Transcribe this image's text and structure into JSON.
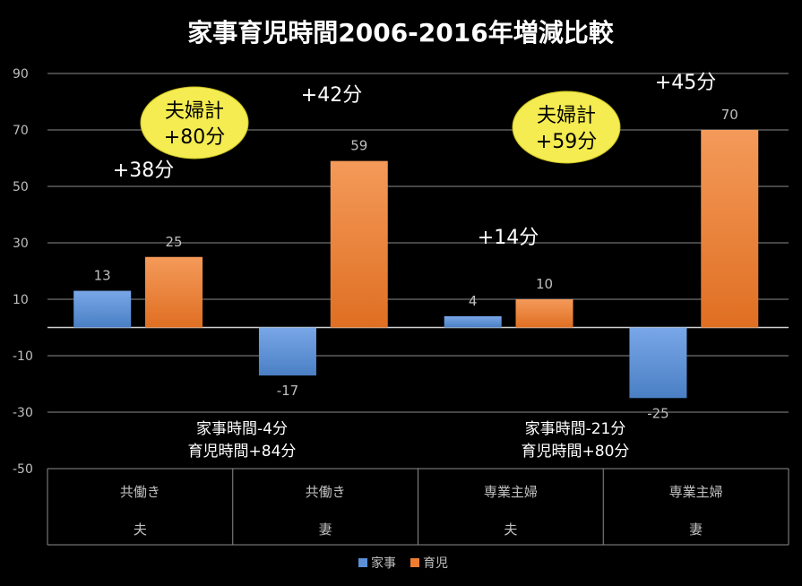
{
  "chart_data": {
    "type": "bar",
    "title": "家事育児時間2006-2016年増減比較",
    "ylim": [
      -50,
      90
    ],
    "yticks": [
      90,
      70,
      50,
      30,
      10,
      -10,
      -30,
      -50
    ],
    "grid": true,
    "legend_position": "bottom",
    "categories": [
      {
        "work": "共働き",
        "person": "夫"
      },
      {
        "work": "共働き",
        "person": "妻"
      },
      {
        "work": "専業主婦",
        "person": "夫"
      },
      {
        "work": "専業主婦",
        "person": "妻"
      }
    ],
    "series": [
      {
        "name": "家事",
        "color": "#5b8fd6",
        "values": [
          13,
          -17,
          4,
          -25
        ]
      },
      {
        "name": "育児",
        "color": "#ee7d31",
        "values": [
          25,
          59,
          10,
          70
        ]
      }
    ],
    "data_labels": {
      "家事": [
        "13",
        "-17",
        "4",
        "-25"
      ],
      "育児": [
        "25",
        "59",
        "10",
        "70"
      ]
    },
    "annotations": {
      "sum_labels": [
        "+38分",
        "+42分",
        "+14分",
        "+45分"
      ],
      "couple_totals": [
        {
          "line1": "夫婦計",
          "line2": "+80分"
        },
        {
          "line1": "夫婦計",
          "line2": "+59分"
        }
      ],
      "group_notes": [
        {
          "line1": "家事時間-4分",
          "line2": "育児時間+84分"
        },
        {
          "line1": "家事時間-21分",
          "line2": "育児時間+80分"
        }
      ]
    }
  },
  "colors": {
    "background": "#000000",
    "grid": "#8c8c8c",
    "housework": "#5b8fd6",
    "childcare": "#ee7d31",
    "callout_fill": "#f4ec50",
    "callout_text": "#000000",
    "text": "#ffffff",
    "muted_text": "#bfbfbf"
  }
}
